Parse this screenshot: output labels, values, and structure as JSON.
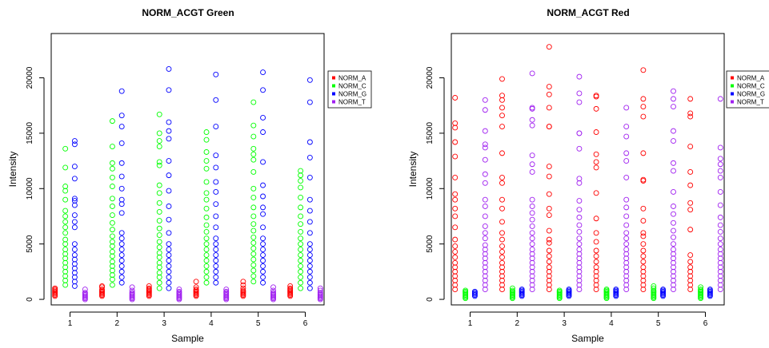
{
  "chart_data": [
    {
      "type": "scatter",
      "title": "NORM_ACGT Green",
      "xlabel": "Sample",
      "ylabel": "Intensity",
      "xlim": [
        0.6,
        6.4
      ],
      "ylim": [
        -500,
        24000
      ],
      "x_ticks": [
        1,
        2,
        3,
        4,
        5,
        6
      ],
      "y_ticks": [
        0,
        5000,
        10000,
        15000,
        20000
      ],
      "grid": false,
      "legend_position": "right",
      "series": [
        {
          "name": "NORM_A",
          "color": "#ff0000",
          "offset": -0.32,
          "values": [
            [
              300,
              400,
              500,
              600,
              700,
              800,
              900,
              1000
            ],
            [
              300,
              400,
              500,
              600,
              700,
              800,
              900,
              1100,
              1200
            ],
            [
              300,
              400,
              500,
              600,
              700,
              800,
              900,
              1000,
              1200
            ],
            [
              300,
              400,
              500,
              600,
              700,
              800,
              900,
              1100,
              1600
            ],
            [
              300,
              400,
              500,
              600,
              700,
              800,
              1000,
              1300,
              1600
            ],
            [
              300,
              400,
              500,
              600,
              700,
              800,
              900,
              1000,
              1200
            ]
          ]
        },
        {
          "name": "NORM_C",
          "color": "#00ff00",
          "offset": -0.1,
          "values": [
            [
              1300,
              1700,
              2100,
              2500,
              2900,
              3300,
              3700,
              4100,
              4500,
              5000,
              5400,
              6000,
              6500,
              7000,
              7500,
              8000,
              9000,
              9800,
              10200,
              11900,
              13600
            ],
            [
              1300,
              1800,
              2200,
              2600,
              3000,
              3400,
              3900,
              4300,
              4800,
              5200,
              5700,
              6300,
              6900,
              7600,
              8400,
              9100,
              10200,
              11000,
              11800,
              12300,
              13800,
              16100
            ],
            [
              1000,
              1500,
              2000,
              2400,
              2900,
              3300,
              3800,
              4200,
              4700,
              5200,
              5800,
              6400,
              7100,
              7900,
              8700,
              9600,
              10300,
              12100,
              12400,
              13800,
              14300,
              15000,
              16700
            ],
            [
              1500,
              2000,
              2500,
              3000,
              3500,
              4000,
              4500,
              5000,
              5500,
              6100,
              6700,
              7400,
              8200,
              9000,
              9600,
              10600,
              11800,
              12500,
              13300,
              14400,
              15100
            ],
            [
              1600,
              2100,
              2600,
              3100,
              3600,
              4100,
              4600,
              5100,
              5600,
              6200,
              6800,
              7500,
              8300,
              9200,
              10000,
              11500,
              12600,
              13100,
              13600,
              14700,
              15700,
              17800
            ],
            [
              1000,
              1500,
              2000,
              2500,
              3000,
              3500,
              4000,
              4500,
              5000,
              5500,
              6100,
              6800,
              7500,
              8300,
              9200,
              10100,
              10700,
              11200,
              11600
            ]
          ]
        },
        {
          "name": "NORM_G",
          "color": "#0000ff",
          "offset": 0.1,
          "values": [
            [
              1200,
              1600,
              2000,
              2400,
              2800,
              3200,
              3600,
              4000,
              4500,
              5000,
              6500,
              7000,
              7600,
              8500,
              8900,
              9100,
              10900,
              12000,
              14000,
              14300
            ],
            [
              1500,
              2000,
              2500,
              3000,
              3500,
              4000,
              4500,
              5000,
              5500,
              6000,
              7800,
              8600,
              9000,
              10000,
              11100,
              12300,
              14100,
              15600,
              16600,
              18800
            ],
            [
              1000,
              1500,
              2000,
              2500,
              3000,
              3500,
              4000,
              4500,
              5000,
              6000,
              7200,
              8400,
              9800,
              11200,
              12500,
              14500,
              15200,
              16000,
              18900,
              20800
            ],
            [
              1500,
              2000,
              2500,
              3000,
              3500,
              4000,
              4500,
              5000,
              5500,
              6500,
              7500,
              8600,
              9700,
              10600,
              11900,
              13000,
              15600,
              18000,
              20300
            ],
            [
              1500,
              2000,
              2500,
              3000,
              3500,
              4000,
              4500,
              5000,
              5500,
              6500,
              7700,
              8300,
              9300,
              10300,
              12400,
              15100,
              16400,
              18900,
              20500
            ],
            [
              1000,
              1500,
              2000,
              2500,
              3000,
              3500,
              4000,
              4500,
              5000,
              6000,
              7000,
              8000,
              9000,
              11000,
              12800,
              14200,
              17800,
              19800
            ]
          ]
        },
        {
          "name": "NORM_T",
          "color": "#a020f0",
          "offset": 0.32,
          "values": [
            [
              0,
              100,
              200,
              300,
              400,
              500,
              600,
              900
            ],
            [
              0,
              100,
              200,
              300,
              400,
              500,
              600,
              800,
              1100
            ],
            [
              0,
              100,
              200,
              300,
              400,
              500,
              600,
              700,
              900
            ],
            [
              0,
              100,
              200,
              300,
              400,
              500,
              600,
              700,
              900
            ],
            [
              0,
              100,
              200,
              300,
              400,
              500,
              600,
              800,
              1100
            ],
            [
              0,
              100,
              200,
              300,
              400,
              500,
              600,
              800,
              1000
            ]
          ]
        }
      ]
    },
    {
      "type": "scatter",
      "title": "NORM_ACGT Red",
      "xlabel": "Sample",
      "ylabel": "Intensity",
      "xlim": [
        0.6,
        6.4
      ],
      "ylim": [
        -500,
        24000
      ],
      "x_ticks": [
        1,
        2,
        3,
        4,
        5,
        6
      ],
      "y_ticks": [
        0,
        5000,
        10000,
        15000,
        20000
      ],
      "grid": false,
      "legend_position": "right",
      "series": [
        {
          "name": "NORM_A",
          "color": "#ff0000",
          "offset": -0.32,
          "values": [
            [
              900,
              1300,
              1700,
              2100,
              2500,
              2900,
              3300,
              3800,
              4300,
              4800,
              5400,
              6500,
              7500,
              8200,
              9000,
              9500,
              11000,
              12900,
              14200,
              15500,
              15900,
              18200
            ],
            [
              900,
              1300,
              1700,
              2100,
              2500,
              2900,
              3300,
              3800,
              4300,
              4800,
              5400,
              6000,
              7000,
              8200,
              9000,
              10500,
              11000,
              13200,
              15600,
              16600,
              17300,
              18000,
              18400,
              19900
            ],
            [
              900,
              1300,
              1700,
              2100,
              2500,
              2900,
              3400,
              3900,
              4400,
              5100,
              5400,
              6200,
              7600,
              8200,
              9500,
              11100,
              12000,
              15600,
              15600,
              17300,
              18500,
              19200,
              22800
            ],
            [
              900,
              1300,
              1700,
              2100,
              2500,
              2900,
              3400,
              3900,
              4400,
              5200,
              6000,
              7300,
              9600,
              11900,
              12400,
              13100,
              15100,
              17200,
              18300,
              18400
            ],
            [
              900,
              1300,
              1700,
              2100,
              2500,
              2900,
              3400,
              3900,
              4400,
              5000,
              5700,
              6000,
              7100,
              8200,
              10700,
              10800,
              13200,
              16500,
              17400,
              18100,
              20700
            ],
            [
              900,
              1300,
              1700,
              2100,
              2500,
              2900,
              3400,
              4000,
              6300,
              8100,
              8700,
              10300,
              11500,
              13800,
              16500,
              16800,
              18100
            ]
          ]
        },
        {
          "name": "NORM_C",
          "color": "#00ff00",
          "offset": -0.1,
          "values": [
            [
              100,
              200,
              300,
              400,
              500,
              600,
              700,
              800
            ],
            [
              100,
              200,
              300,
              400,
              500,
              600,
              700,
              800,
              1000
            ],
            [
              100,
              200,
              300,
              400,
              500,
              600,
              700,
              800
            ],
            [
              100,
              200,
              300,
              400,
              500,
              600,
              700,
              800,
              900
            ],
            [
              100,
              200,
              300,
              400,
              500,
              600,
              700,
              800,
              1000,
              1200
            ],
            [
              100,
              200,
              300,
              400,
              500,
              600,
              700,
              800,
              900,
              1100
            ]
          ]
        },
        {
          "name": "NORM_G",
          "color": "#0000ff",
          "offset": 0.1,
          "values": [
            [
              300,
              400,
              500,
              600,
              700
            ],
            [
              300,
              400,
              500,
              600,
              700,
              800,
              900
            ],
            [
              300,
              400,
              500,
              600,
              700,
              800,
              900
            ],
            [
              300,
              400,
              500,
              600,
              700,
              800,
              900
            ],
            [
              300,
              400,
              500,
              600,
              700,
              800,
              900
            ],
            [
              300,
              400,
              500,
              600,
              700,
              800,
              900
            ]
          ]
        },
        {
          "name": "NORM_T",
          "color": "#a020f0",
          "offset": 0.32,
          "values": [
            [
              900,
              1300,
              1700,
              2100,
              2500,
              2900,
              3300,
              3700,
              4100,
              4500,
              4900,
              5500,
              6000,
              6600,
              7500,
              8400,
              9000,
              10500,
              11300,
              12600,
              13700,
              14000,
              15200,
              17100,
              18000
            ],
            [
              900,
              1300,
              1700,
              2100,
              2500,
              2900,
              3300,
              3700,
              4100,
              4500,
              5000,
              5500,
              6000,
              6600,
              7200,
              7800,
              8400,
              9000,
              11500,
              12200,
              13000,
              15700,
              16200,
              17200,
              17300,
              20400
            ],
            [
              900,
              1300,
              1700,
              2100,
              2500,
              2900,
              3300,
              3700,
              4100,
              4500,
              5000,
              5500,
              6100,
              6700,
              7400,
              8100,
              8900,
              10500,
              10900,
              13600,
              15000,
              15000,
              17800,
              18600,
              20100
            ],
            [
              900,
              1300,
              1700,
              2100,
              2500,
              2900,
              3300,
              3700,
              4100,
              4500,
              5000,
              5500,
              6000,
              6700,
              7500,
              8300,
              9000,
              11000,
              12500,
              13200,
              14700,
              15600,
              17300
            ],
            [
              900,
              1300,
              1700,
              2100,
              2500,
              2900,
              3300,
              3700,
              4100,
              4500,
              5000,
              5600,
              6200,
              6900,
              7700,
              8400,
              9700,
              11600,
              12300,
              14300,
              15200,
              17400,
              18100,
              18800
            ],
            [
              900,
              1300,
              1700,
              2100,
              2500,
              2900,
              3300,
              3700,
              4100,
              4500,
              5000,
              5500,
              6100,
              6700,
              7400,
              8500,
              9700,
              11000,
              11600,
              12200,
              12700,
              13700,
              18100
            ]
          ]
        }
      ]
    }
  ]
}
